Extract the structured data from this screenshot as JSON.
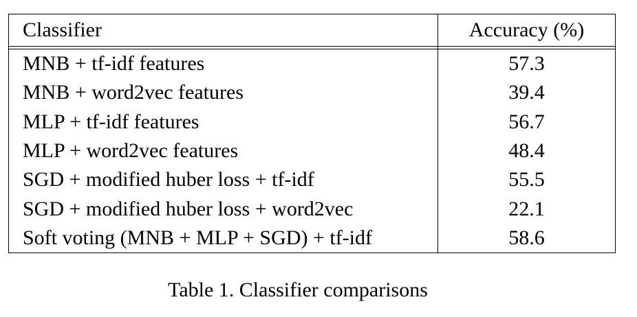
{
  "table": {
    "headers": {
      "classifier": "Classifier",
      "accuracy": "Accuracy (%)"
    },
    "rows": [
      {
        "classifier": "MNB + tf-idf features",
        "accuracy": "57.3"
      },
      {
        "classifier": "MNB + word2vec features",
        "accuracy": "39.4"
      },
      {
        "classifier": "MLP + tf-idf features",
        "accuracy": "56.7"
      },
      {
        "classifier": "MLP + word2vec features",
        "accuracy": "48.4"
      },
      {
        "classifier": "SGD + modified huber loss + tf-idf",
        "accuracy": "55.5"
      },
      {
        "classifier": "SGD + modified huber loss + word2vec",
        "accuracy": "22.1"
      },
      {
        "classifier": "Soft voting (MNB + MLP + SGD) + tf-idf",
        "accuracy": "58.6"
      }
    ],
    "caption": "Table 1. Classifier comparisons"
  }
}
